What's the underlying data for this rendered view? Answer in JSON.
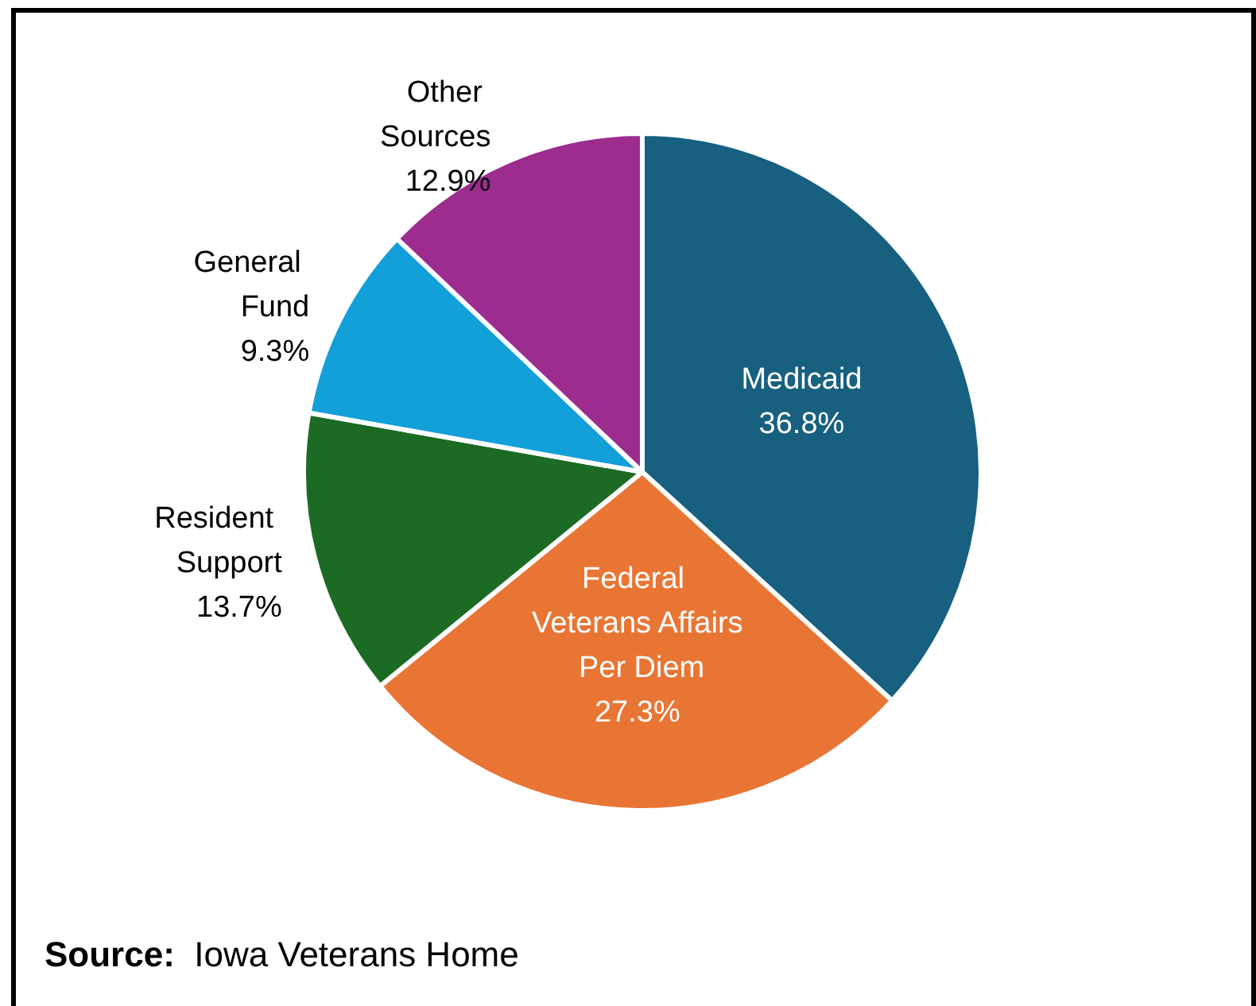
{
  "chart_data": {
    "type": "pie",
    "categories": [
      "Medicaid",
      "Federal Veterans Affairs Per Diem",
      "Resident Support",
      "General Fund",
      "Other Sources"
    ],
    "values": [
      36.8,
      27.3,
      13.7,
      9.3,
      12.9
    ],
    "value_labels": [
      "36.8%",
      "27.3%",
      "13.7%",
      "9.3%",
      "12.9%"
    ],
    "colors": [
      "#17607f",
      "#e97534",
      "#1c6b24",
      "#139fd8",
      "#9c2d8f"
    ],
    "legend": false,
    "annotations": [
      "Source: Iowa Veterans Home"
    ]
  }
}
